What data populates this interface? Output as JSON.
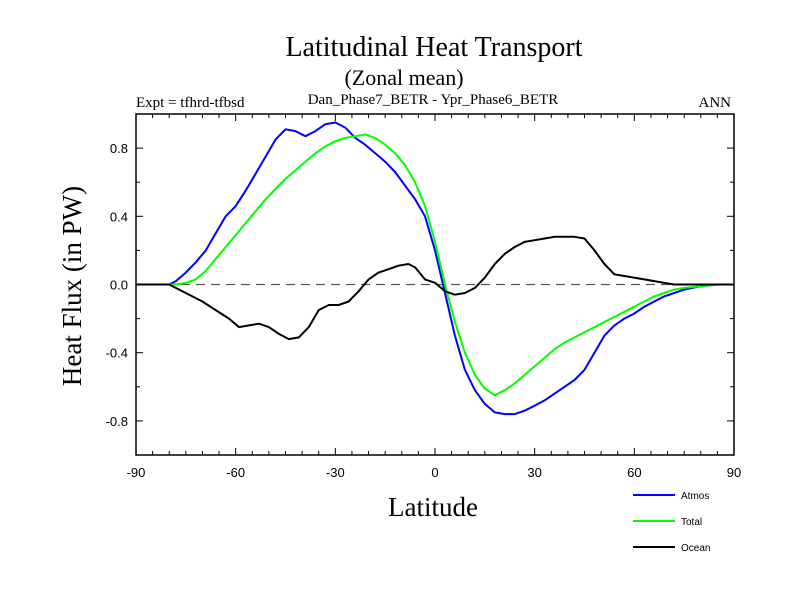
{
  "chart_data": {
    "type": "line",
    "title": "Latitudinal Heat Transport",
    "subtitle": "(Zonal mean)",
    "left_label": "Expt = tfhrd-tfbsd",
    "center_label": "Dan_Phase7_BETR - Ypr_Phase6_BETR",
    "right_label": "ANN",
    "xlabel": "Latitude",
    "ylabel": "Heat Flux (in PW)",
    "xlim": [
      -90,
      90
    ],
    "ylim": [
      -1.0,
      1.0
    ],
    "xticks": [
      -90,
      -60,
      -30,
      0,
      30,
      60,
      90
    ],
    "xtick_labels": [
      "-90",
      "-60",
      "-30",
      "0",
      "30",
      "60",
      "90"
    ],
    "yticks": [
      -0.8,
      -0.4,
      0.0,
      0.4,
      0.8
    ],
    "ytick_labels": [
      "-0.8",
      "-0.4",
      "0.0",
      "0.4",
      "0.8"
    ],
    "reference_line": 0.0,
    "legend_position": "bottom-right",
    "series": [
      {
        "name": "Atmos",
        "color": "#0000ff",
        "x": [
          -90,
          -80,
          -78,
          -75,
          -72,
          -69,
          -66,
          -63,
          -60,
          -57,
          -54,
          -51,
          -48,
          -45,
          -42,
          -39,
          -36,
          -33,
          -30,
          -27,
          -24,
          -21,
          -18,
          -15,
          -12,
          -9,
          -6,
          -3,
          0,
          3,
          6,
          9,
          12,
          15,
          18,
          21,
          24,
          27,
          30,
          33,
          36,
          39,
          42,
          45,
          48,
          51,
          54,
          57,
          60,
          63,
          66,
          69,
          72,
          75,
          80,
          85,
          90
        ],
        "y": [
          0.0,
          0.0,
          0.02,
          0.07,
          0.13,
          0.2,
          0.3,
          0.4,
          0.46,
          0.55,
          0.65,
          0.75,
          0.85,
          0.91,
          0.9,
          0.87,
          0.9,
          0.94,
          0.95,
          0.92,
          0.86,
          0.82,
          0.77,
          0.72,
          0.66,
          0.58,
          0.5,
          0.4,
          0.2,
          -0.05,
          -0.3,
          -0.5,
          -0.62,
          -0.7,
          -0.75,
          -0.76,
          -0.76,
          -0.74,
          -0.71,
          -0.68,
          -0.64,
          -0.6,
          -0.56,
          -0.5,
          -0.4,
          -0.3,
          -0.24,
          -0.2,
          -0.17,
          -0.13,
          -0.1,
          -0.07,
          -0.05,
          -0.03,
          -0.01,
          0.0,
          0.0
        ]
      },
      {
        "name": "Total",
        "color": "#00ff00",
        "x": [
          -90,
          -78,
          -75,
          -72,
          -69,
          -66,
          -63,
          -60,
          -57,
          -54,
          -51,
          -48,
          -45,
          -42,
          -39,
          -36,
          -33,
          -30,
          -27,
          -24,
          -21,
          -18,
          -15,
          -12,
          -9,
          -6,
          -3,
          0,
          3,
          6,
          9,
          12,
          15,
          18,
          21,
          24,
          27,
          30,
          33,
          36,
          39,
          42,
          45,
          48,
          51,
          54,
          57,
          60,
          63,
          66,
          69,
          72,
          75,
          80,
          85,
          90
        ],
        "y": [
          0.0,
          0.0,
          0.01,
          0.03,
          0.08,
          0.15,
          0.22,
          0.29,
          0.36,
          0.43,
          0.5,
          0.56,
          0.62,
          0.67,
          0.72,
          0.77,
          0.81,
          0.84,
          0.86,
          0.87,
          0.88,
          0.86,
          0.82,
          0.77,
          0.7,
          0.6,
          0.46,
          0.25,
          0.0,
          -0.22,
          -0.4,
          -0.53,
          -0.61,
          -0.65,
          -0.62,
          -0.58,
          -0.53,
          -0.48,
          -0.43,
          -0.38,
          -0.34,
          -0.31,
          -0.28,
          -0.25,
          -0.22,
          -0.19,
          -0.16,
          -0.13,
          -0.1,
          -0.07,
          -0.05,
          -0.03,
          -0.02,
          -0.01,
          0.0,
          0.0
        ]
      },
      {
        "name": "Ocean",
        "color": "#000000",
        "x": [
          -90,
          -80,
          -75,
          -70,
          -66,
          -62,
          -59,
          -56,
          -53,
          -50,
          -47,
          -44,
          -41,
          -38,
          -35,
          -32,
          -29,
          -26,
          -23,
          -20,
          -17,
          -14,
          -11,
          -8,
          -6,
          -3,
          0,
          3,
          6,
          9,
          12,
          15,
          18,
          21,
          24,
          27,
          30,
          33,
          36,
          39,
          42,
          45,
          48,
          51,
          54,
          57,
          60,
          63,
          66,
          69,
          72,
          75,
          80,
          85,
          90
        ],
        "y": [
          0.0,
          0.0,
          -0.05,
          -0.1,
          -0.15,
          -0.2,
          -0.25,
          -0.24,
          -0.23,
          -0.25,
          -0.29,
          -0.32,
          -0.31,
          -0.25,
          -0.15,
          -0.12,
          -0.12,
          -0.1,
          -0.04,
          0.03,
          0.07,
          0.09,
          0.11,
          0.12,
          0.1,
          0.03,
          0.01,
          -0.04,
          -0.06,
          -0.05,
          -0.02,
          0.04,
          0.12,
          0.18,
          0.22,
          0.25,
          0.26,
          0.27,
          0.28,
          0.28,
          0.28,
          0.27,
          0.2,
          0.12,
          0.06,
          0.05,
          0.04,
          0.03,
          0.02,
          0.01,
          0.0,
          0.0,
          0.0,
          0.0,
          0.0
        ]
      }
    ]
  }
}
